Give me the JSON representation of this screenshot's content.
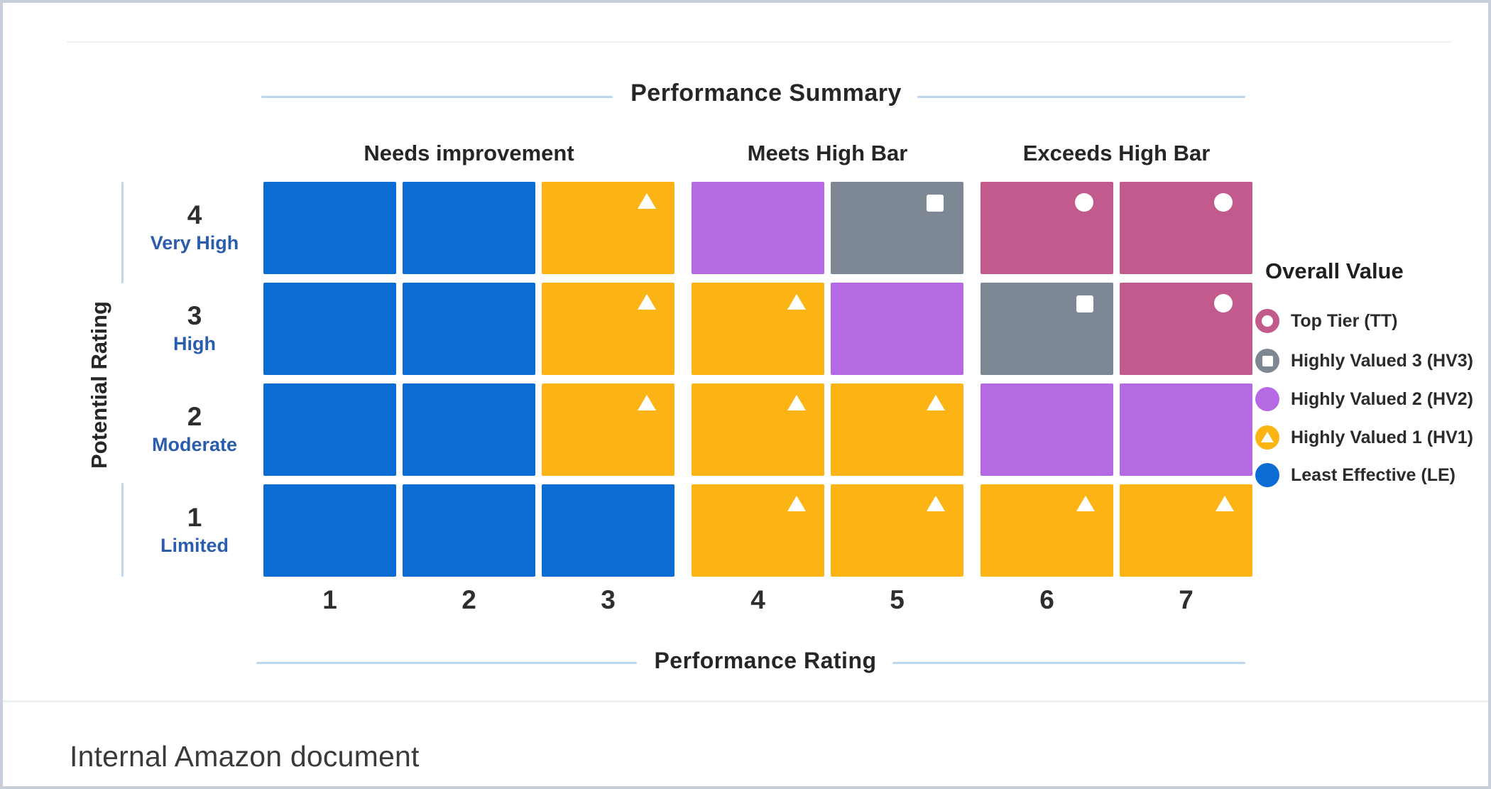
{
  "chart_data": {
    "type": "heatmap",
    "title": "Performance Summary",
    "xlabel": "Performance Rating",
    "ylabel": "Potential Rating",
    "x_ticks": [
      "1",
      "2",
      "3",
      "4",
      "5",
      "6",
      "7"
    ],
    "column_groups": [
      {
        "label": "Needs improvement",
        "columns": [
          1,
          3
        ]
      },
      {
        "label": "Meets High Bar",
        "columns": [
          4,
          5
        ]
      },
      {
        "label": "Exceeds High Bar",
        "columns": [
          6,
          7
        ]
      }
    ],
    "y_rows": [
      {
        "value": "4",
        "label": "Very High"
      },
      {
        "value": "3",
        "label": "High"
      },
      {
        "value": "2",
        "label": "Moderate"
      },
      {
        "value": "1",
        "label": "Limited"
      }
    ],
    "cells": [
      [
        "LE",
        "LE",
        "HV1",
        "HV2",
        "HV3",
        "TT",
        "TT"
      ],
      [
        "LE",
        "LE",
        "HV1",
        "HV1",
        "HV2",
        "HV3",
        "TT"
      ],
      [
        "LE",
        "LE",
        "HV1",
        "HV1",
        "HV1",
        "HV2",
        "HV2"
      ],
      [
        "LE",
        "LE",
        "LE",
        "HV1",
        "HV1",
        "HV1",
        "HV1"
      ]
    ],
    "cell_markers": {
      "TT": "circle",
      "HV3": "square",
      "HV2": "none",
      "HV1": "triangle",
      "LE": "none"
    },
    "colors": {
      "TT": "#C35A8D",
      "HV3": "#7D8894",
      "HV2": "#B569E3",
      "HV1": "#FCB414",
      "LE": "#0B6CD4",
      "marker": "#FFFFFF",
      "axis_line": "#BDD7EE",
      "row_sublabel": "#2B5DAD"
    },
    "legend": {
      "title": "Overall Value",
      "position": "right",
      "items": [
        {
          "code": "TT",
          "label": "Top Tier (TT)",
          "shape": "ring"
        },
        {
          "code": "HV3",
          "label": "Highly Valued 3 (HV3)",
          "shape": "square-in-circle"
        },
        {
          "code": "HV2",
          "label": "Highly Valued 2 (HV2)",
          "shape": "circle"
        },
        {
          "code": "HV1",
          "label": "Highly Valued 1 (HV1)",
          "shape": "triangle-in-circle"
        },
        {
          "code": "LE",
          "label": "Least Effective (LE)",
          "shape": "circle"
        }
      ]
    }
  },
  "caption": "Internal Amazon document"
}
